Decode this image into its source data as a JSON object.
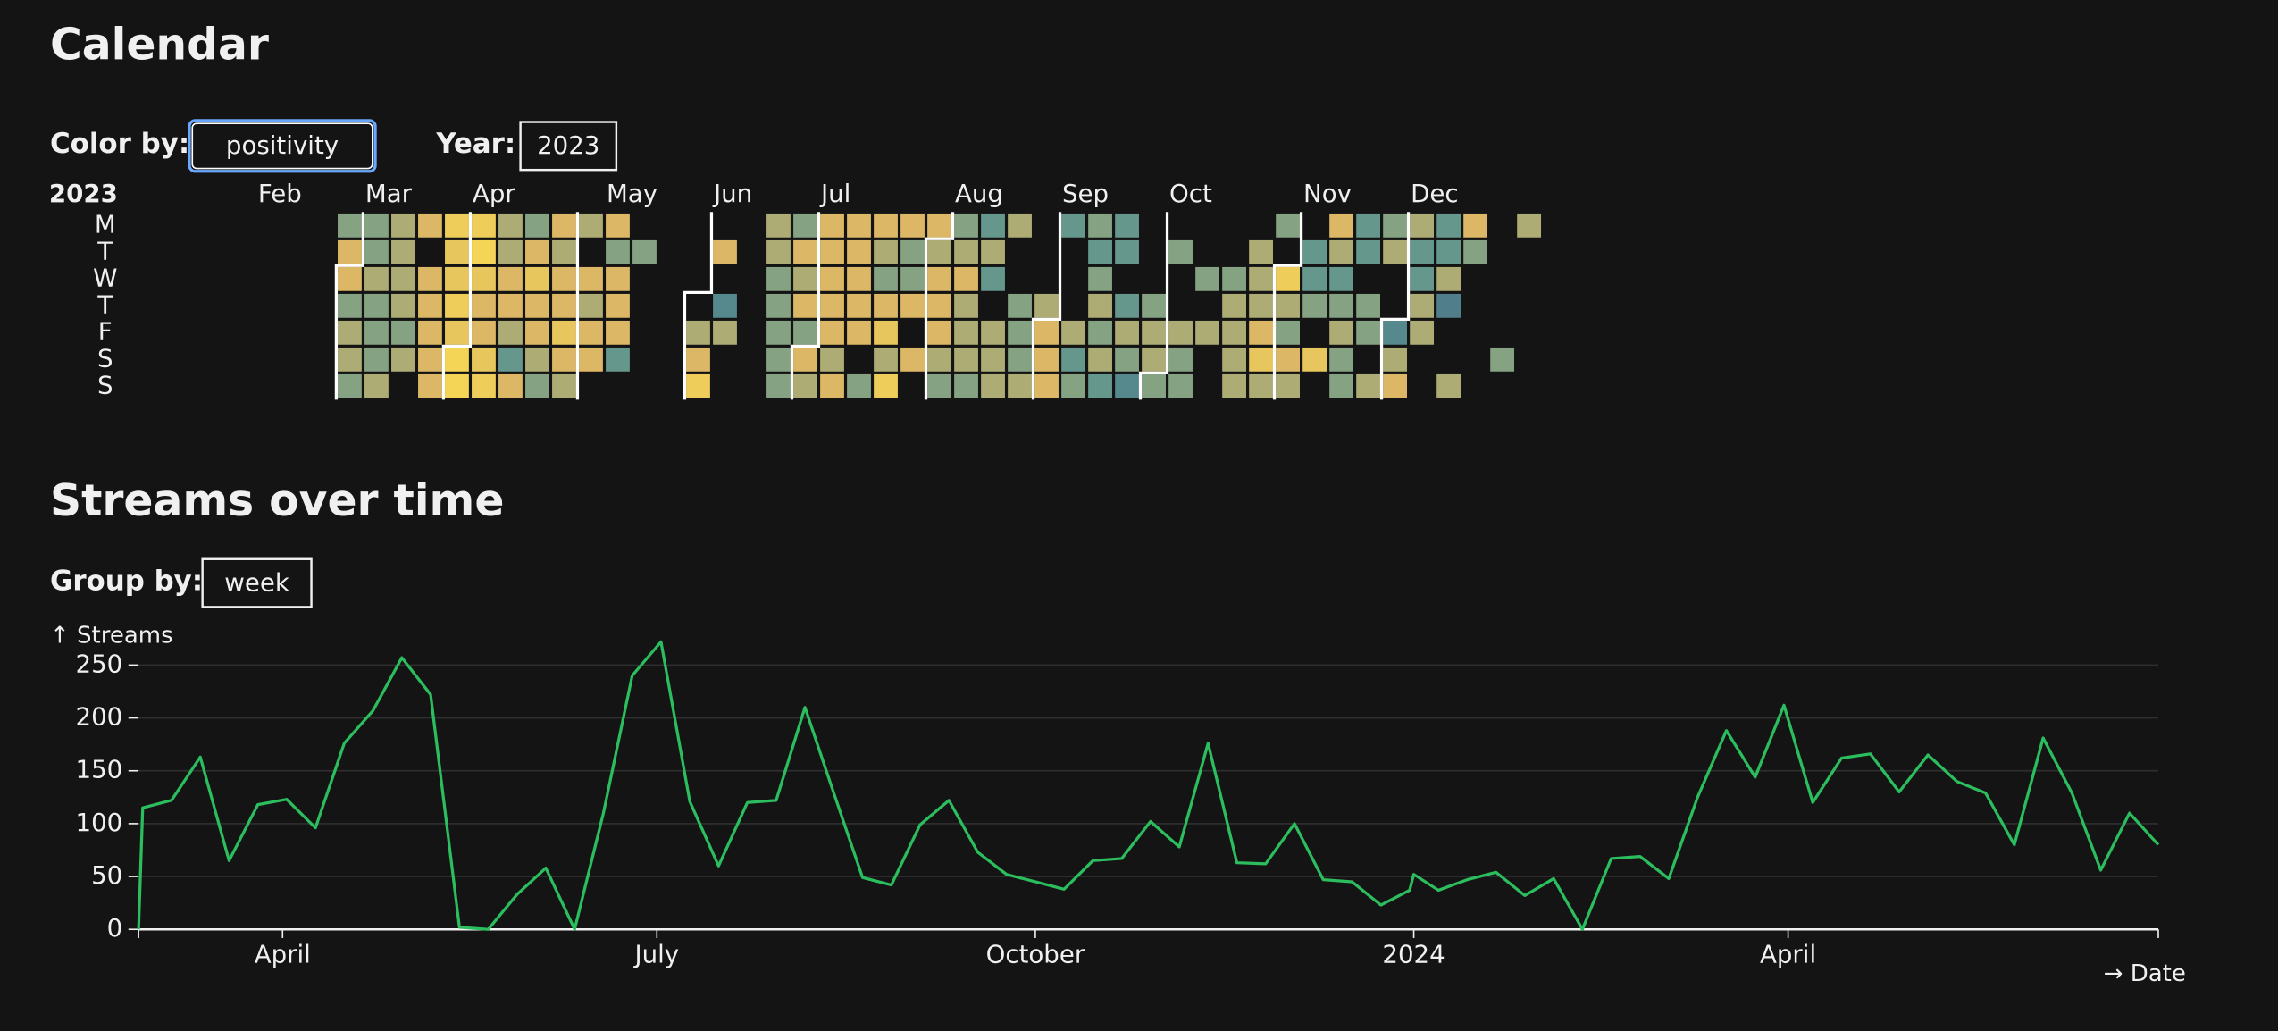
{
  "calendar_section": {
    "title": "Calendar",
    "color_by_label": "Color by:",
    "color_by_value": "positivity",
    "year_label": "Year:",
    "year_value": "2023"
  },
  "streams_section": {
    "title": "Streams over time",
    "group_by_label": "Group by:",
    "group_by_value": "week"
  },
  "chart_data": [
    {
      "type": "calendar",
      "year": "2023",
      "weekday_labels": [
        "M",
        "T",
        "W",
        "T",
        "F",
        "S",
        "S"
      ],
      "months": [
        {
          "value": 5,
          "label": "Feb"
        },
        {
          "value": 9,
          "label": "Mar"
        },
        {
          "value": 13,
          "label": "Apr"
        },
        {
          "value": 18,
          "label": "May"
        },
        {
          "value": 22,
          "label": "Jun"
        },
        {
          "value": 26,
          "label": "Jul"
        },
        {
          "value": 31,
          "label": "Aug"
        },
        {
          "value": 35,
          "label": "Sep"
        },
        {
          "value": 39,
          "label": "Oct"
        },
        {
          "value": 44,
          "label": "Nov"
        },
        {
          "value": 48,
          "label": "Dec"
        }
      ],
      "colors": [
        "#3f5f86",
        "#5b948f",
        "#8fa57f",
        "#dcb766",
        "#fbdc52"
      ],
      "weeks": [
        null,
        null,
        null,
        null,
        null,
        null,
        null,
        null,
        null,
        [
          0.45,
          0.75,
          0.75,
          0.45,
          0.6,
          0.6,
          0.45
        ],
        [
          0.45,
          0.45,
          0.6,
          0.45,
          0.45,
          0.45,
          0.6
        ],
        [
          0.6,
          0.6,
          0.6,
          0.6,
          0.45,
          0.6,
          null
        ],
        [
          0.75,
          null,
          0.75,
          0.75,
          0.75,
          0.75,
          0.75
        ],
        [
          0.9,
          0.85,
          0.85,
          0.9,
          0.85,
          0.95,
          0.95
        ],
        [
          0.9,
          0.95,
          0.85,
          0.75,
          0.75,
          0.85,
          0.9
        ],
        [
          0.6,
          0.6,
          0.75,
          0.75,
          0.6,
          0.3,
          0.75
        ],
        [
          0.45,
          0.75,
          0.85,
          0.75,
          0.75,
          0.6,
          0.45
        ],
        [
          0.75,
          0.6,
          0.75,
          0.75,
          0.85,
          0.75,
          0.6
        ],
        [
          0.6,
          null,
          0.75,
          0.6,
          0.75,
          0.75,
          null
        ],
        [
          0.75,
          0.45,
          0.75,
          0.75,
          0.75,
          0.3,
          null
        ],
        [
          null,
          0.45,
          null,
          null,
          null,
          null,
          null
        ],
        null,
        [
          null,
          null,
          null,
          null,
          0.6,
          0.75,
          0.9
        ],
        [
          null,
          0.75,
          null,
          0.2,
          0.6,
          null,
          null
        ],
        null,
        [
          0.6,
          0.6,
          0.45,
          0.45,
          0.45,
          0.45,
          0.45
        ],
        [
          0.45,
          0.75,
          0.6,
          0.75,
          0.45,
          0.75,
          0.6
        ],
        [
          0.75,
          0.75,
          0.75,
          0.75,
          0.75,
          0.6,
          0.75
        ],
        [
          0.75,
          0.75,
          0.75,
          0.75,
          0.75,
          null,
          0.45
        ],
        [
          0.75,
          0.6,
          0.45,
          0.75,
          0.85,
          0.6,
          0.9
        ],
        [
          0.75,
          0.45,
          0.45,
          0.75,
          null,
          0.75,
          null
        ],
        [
          0.75,
          0.6,
          0.75,
          0.75,
          0.75,
          0.6,
          0.45
        ],
        [
          0.45,
          0.6,
          0.75,
          0.6,
          0.6,
          0.6,
          0.45
        ],
        [
          0.3,
          0.6,
          0.3,
          null,
          0.6,
          0.6,
          0.6
        ],
        [
          0.6,
          null,
          null,
          0.45,
          0.45,
          0.45,
          0.6
        ],
        [
          null,
          null,
          null,
          0.6,
          0.75,
          0.75,
          0.75
        ],
        [
          0.3,
          null,
          null,
          null,
          0.6,
          0.3,
          0.45
        ],
        [
          0.45,
          0.3,
          0.45,
          0.6,
          0.45,
          0.6,
          0.3
        ],
        [
          0.3,
          0.3,
          null,
          0.3,
          0.6,
          0.45,
          0.2
        ],
        [
          null,
          null,
          null,
          0.45,
          0.6,
          0.6,
          0.45
        ],
        [
          null,
          0.45,
          null,
          null,
          0.6,
          0.45,
          0.45
        ],
        [
          null,
          null,
          0.45,
          null,
          0.6,
          null,
          null
        ],
        [
          null,
          null,
          0.45,
          0.6,
          0.6,
          0.6,
          0.6
        ],
        [
          null,
          0.6,
          0.6,
          0.6,
          0.75,
          0.85,
          0.6
        ],
        [
          0.45,
          null,
          0.9,
          0.6,
          0.45,
          0.75,
          0.6
        ],
        [
          null,
          0.3,
          0.3,
          0.45,
          null,
          0.85,
          null
        ],
        [
          0.75,
          0.6,
          0.3,
          0.45,
          0.6,
          0.45,
          0.45
        ],
        [
          0.3,
          0.3,
          null,
          0.45,
          0.45,
          null,
          0.6
        ],
        [
          0.45,
          0.6,
          null,
          null,
          0.2,
          0.6,
          0.75
        ],
        [
          0.6,
          0.3,
          0.3,
          0.6,
          0.6,
          null,
          null
        ],
        [
          0.3,
          0.3,
          0.6,
          0.15,
          null,
          null,
          0.6
        ],
        [
          0.75,
          0.45,
          null,
          null,
          null,
          null,
          null
        ],
        [
          null,
          null,
          null,
          null,
          null,
          0.45,
          null
        ],
        [
          0.6,
          null,
          null,
          null,
          null,
          null,
          null
        ]
      ]
    },
    {
      "type": "line",
      "ylabel": "↑ Streams",
      "xlabel": "→ Date",
      "color": "#2bbd5e",
      "grid": true,
      "x": [
        "2023-02-25",
        "2023-02-26",
        "2023-03-05",
        "2023-03-12",
        "2023-03-19",
        "2023-03-26",
        "2023-04-02",
        "2023-04-09",
        "2023-04-16",
        "2023-04-23",
        "2023-04-30",
        "2023-05-07",
        "2023-05-14",
        "2023-05-21",
        "2023-05-28",
        "2023-06-04",
        "2023-06-11",
        "2023-06-18",
        "2023-06-25",
        "2023-07-02",
        "2023-07-09",
        "2023-07-16",
        "2023-07-23",
        "2023-07-30",
        "2023-08-06",
        "2023-08-13",
        "2023-08-20",
        "2023-08-27",
        "2023-09-03",
        "2023-09-10",
        "2023-09-17",
        "2023-09-24",
        "2023-10-01",
        "2023-10-08",
        "2023-10-15",
        "2023-10-22",
        "2023-10-29",
        "2023-11-05",
        "2023-11-12",
        "2023-11-19",
        "2023-11-26",
        "2023-12-03",
        "2023-12-10",
        "2023-12-17",
        "2023-12-24",
        "2023-12-31",
        "2024-01-01",
        "2024-01-07",
        "2024-01-14",
        "2024-01-21",
        "2024-01-28",
        "2024-02-04",
        "2024-02-11",
        "2024-02-18",
        "2024-02-25",
        "2024-03-03",
        "2024-03-10",
        "2024-03-17",
        "2024-03-24",
        "2024-03-31",
        "2024-04-07",
        "2024-04-14",
        "2024-04-21",
        "2024-04-28",
        "2024-05-05",
        "2024-05-12",
        "2024-05-19",
        "2024-05-26",
        "2024-06-02",
        "2024-06-09",
        "2024-06-16",
        "2024-06-23",
        "2024-06-30"
      ],
      "values": [
        0,
        115,
        122,
        163,
        65,
        118,
        123,
        96,
        176,
        207,
        257,
        222,
        2,
        0,
        33,
        58,
        0,
        110,
        240,
        272,
        121,
        60,
        120,
        122,
        210,
        129,
        49,
        42,
        99,
        122,
        73,
        52,
        45,
        38,
        65,
        67,
        102,
        78,
        176,
        63,
        62,
        100,
        47,
        45,
        23,
        37,
        52,
        37,
        47,
        54,
        32,
        48,
        0,
        67,
        69,
        48,
        125,
        188,
        144,
        212,
        120,
        162,
        166,
        130,
        165,
        140,
        129,
        80,
        181,
        129,
        56,
        110,
        80
      ],
      "xlim": [
        "2023-02-25",
        "2024-06-30"
      ],
      "xticks": [
        {
          "value": "2023-04-01",
          "label": "April"
        },
        {
          "value": "2023-07-01",
          "label": "July"
        },
        {
          "value": "2023-10-01",
          "label": "October"
        },
        {
          "value": "2024-01-01",
          "label": "2024"
        },
        {
          "value": "2024-04-01",
          "label": "April"
        }
      ],
      "ylim": [
        0,
        275
      ],
      "yticks": [
        0,
        50,
        100,
        150,
        200,
        250
      ]
    }
  ]
}
